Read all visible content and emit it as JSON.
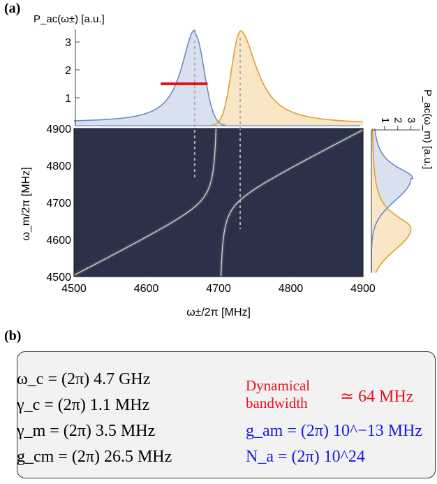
{
  "panel_a": {
    "label": "(a)",
    "top_axis_label": "P_ac(ω±) [a.u.]",
    "side_axis_label": "P_ac(ω_m) [a.u.]",
    "x_axis_label": "ω±/2π [MHz]",
    "y_axis_label": "ω_m/2π [MHz]"
  },
  "panel_b": {
    "label": "(b)",
    "params_left": [
      "ω_c = (2π) 4.7 GHz",
      "γ_c = (2π) 1.1 MHz",
      "γ_m = (2π) 3.5 MHz",
      "g_cm = (2π) 26.5 MHz"
    ],
    "dynamical_bandwidth_label": [
      "Dynamical",
      "bandwidth"
    ],
    "dynamical_bandwidth_value": "≃ 64 MHz",
    "g_am": "g_am = (2π) 10^−13 MHz",
    "N_a": "N_a = (2π) 10^24"
  },
  "colors": {
    "heatmap_bg": "#2b3149",
    "minus_branch": "#6a8cc0",
    "plus_branch": "#e0a030",
    "minus_fill": "#d9e1ee",
    "plus_fill": "#f8e6c6",
    "bandwidth_marker": "#e81020"
  },
  "chart_data": {
    "type": "heatmap",
    "params": {
      "omega_c": 4700,
      "gamma_c": 1.1,
      "gamma_m": 3.5,
      "g_cm": 26.5
    },
    "main": {
      "xlim": [
        4500,
        4900
      ],
      "ylim": [
        4500,
        4900
      ],
      "xticks": [
        4500,
        4600,
        4700,
        4800,
        4900
      ],
      "yticks": [
        4500,
        4600,
        4700,
        4800,
        4900
      ],
      "xlabel": "ω±/2π [MHz]",
      "ylabel": "ω_m/2π [MHz]"
    },
    "top_spectrum": {
      "ylabel": "P_ac(ω±) [a.u.]",
      "yticks": [
        1,
        2,
        3
      ],
      "ylim": [
        0,
        3.5
      ],
      "series": [
        {
          "peak_x": 4667,
          "peak_y": 3.3,
          "left_tail_y": 0.3,
          "half_width_line": [
            4620,
            4685
          ],
          "half_width_y": 1.5
        },
        {
          "peak_x": 4730,
          "peak_y": 3.35,
          "right_tail_y": 0.35
        }
      ]
    },
    "side_spectrum": {
      "label": "P_ac(ω_m) [a.u.]",
      "ticks": [
        1,
        2,
        3
      ],
      "series": [
        {
          "peak_y": 4765,
          "peak_value": 3.0
        },
        {
          "peak_y": 4630,
          "peak_value": 3.0
        }
      ]
    },
    "dashed_lines": [
      4667,
      4730
    ],
    "bandwidth_marker": {
      "x0": 4620,
      "x1": 4685,
      "y": 1.5
    }
  }
}
